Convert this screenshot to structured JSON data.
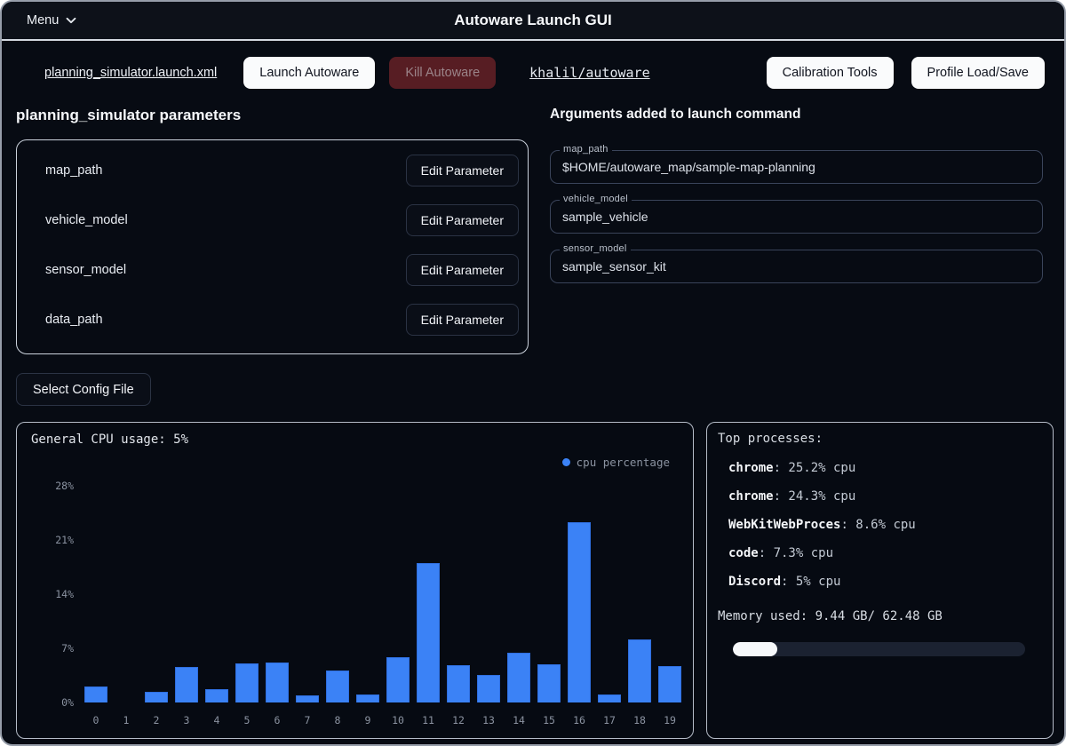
{
  "window": {
    "title": "Autoware Launch GUI",
    "menu_label": "Menu"
  },
  "toolbar": {
    "launch_file_link": "planning_simulator.launch.xml",
    "launch_button": "Launch Autoware",
    "kill_button": "Kill Autoware",
    "repo_link": "khalil/autoware",
    "calibration_button": "Calibration Tools",
    "profile_button": "Profile Load/Save"
  },
  "parameters": {
    "heading": "planning_simulator parameters",
    "edit_button_label": "Edit Parameter",
    "rows": [
      {
        "name": "map_path"
      },
      {
        "name": "vehicle_model"
      },
      {
        "name": "sensor_model"
      },
      {
        "name": "data_path"
      }
    ],
    "select_config_button": "Select Config File"
  },
  "arguments": {
    "heading": "Arguments added to launch command",
    "fields": [
      {
        "label": "map_path",
        "value": "$HOME/autoware_map/sample-map-planning"
      },
      {
        "label": "vehicle_model",
        "value": "sample_vehicle"
      },
      {
        "label": "sensor_model",
        "value": "sample_sensor_kit"
      }
    ]
  },
  "cpu_panel": {
    "title": "General CPU usage: 5%",
    "legend_label": "cpu percentage",
    "accent_color": "#3b82f6"
  },
  "chart_data": {
    "type": "bar",
    "title": "General CPU usage: 5%",
    "categories": [
      "0",
      "1",
      "2",
      "3",
      "4",
      "5",
      "6",
      "7",
      "8",
      "9",
      "10",
      "11",
      "12",
      "13",
      "14",
      "15",
      "16",
      "17",
      "18",
      "19"
    ],
    "values": [
      2.1,
      0,
      1.4,
      4.6,
      1.7,
      5.0,
      5.2,
      0.9,
      4.1,
      1.0,
      5.9,
      18.0,
      4.8,
      3.6,
      6.4,
      4.9,
      23.3,
      1.0,
      8.1,
      4.7
    ],
    "series_name": "cpu percentage",
    "xlabel": "",
    "ylabel": "",
    "ylim": [
      0,
      28
    ],
    "yticks": [
      "0%",
      "7%",
      "14%",
      "21%",
      "28%"
    ],
    "grid": false,
    "legend_position": "top-right",
    "bar_color": "#3b82f6"
  },
  "processes_panel": {
    "title": "Top processes:",
    "items": [
      {
        "name": "chrome",
        "detail": ": 25.2% cpu"
      },
      {
        "name": "chrome",
        "detail": ": 24.3% cpu"
      },
      {
        "name": "WebKitWebProces",
        "detail": ": 8.6% cpu"
      },
      {
        "name": "code",
        "detail": ": 7.3% cpu"
      },
      {
        "name": "Discord",
        "detail": ": 5% cpu"
      }
    ],
    "memory_label": "Memory used: 9.44 GB/ 62.48 GB",
    "memory_used_gb": 9.44,
    "memory_total_gb": 62.48,
    "memory_percent": 15.1
  },
  "colors": {
    "background": "#070b13",
    "topbar": "#0d1119",
    "accent_blue": "#3b82f6",
    "kill_button_bg": "#571d23",
    "light_button_bg": "#fafbfc",
    "panel_border": "#ccd3dd",
    "progress_fill": "#f6f8fa"
  }
}
